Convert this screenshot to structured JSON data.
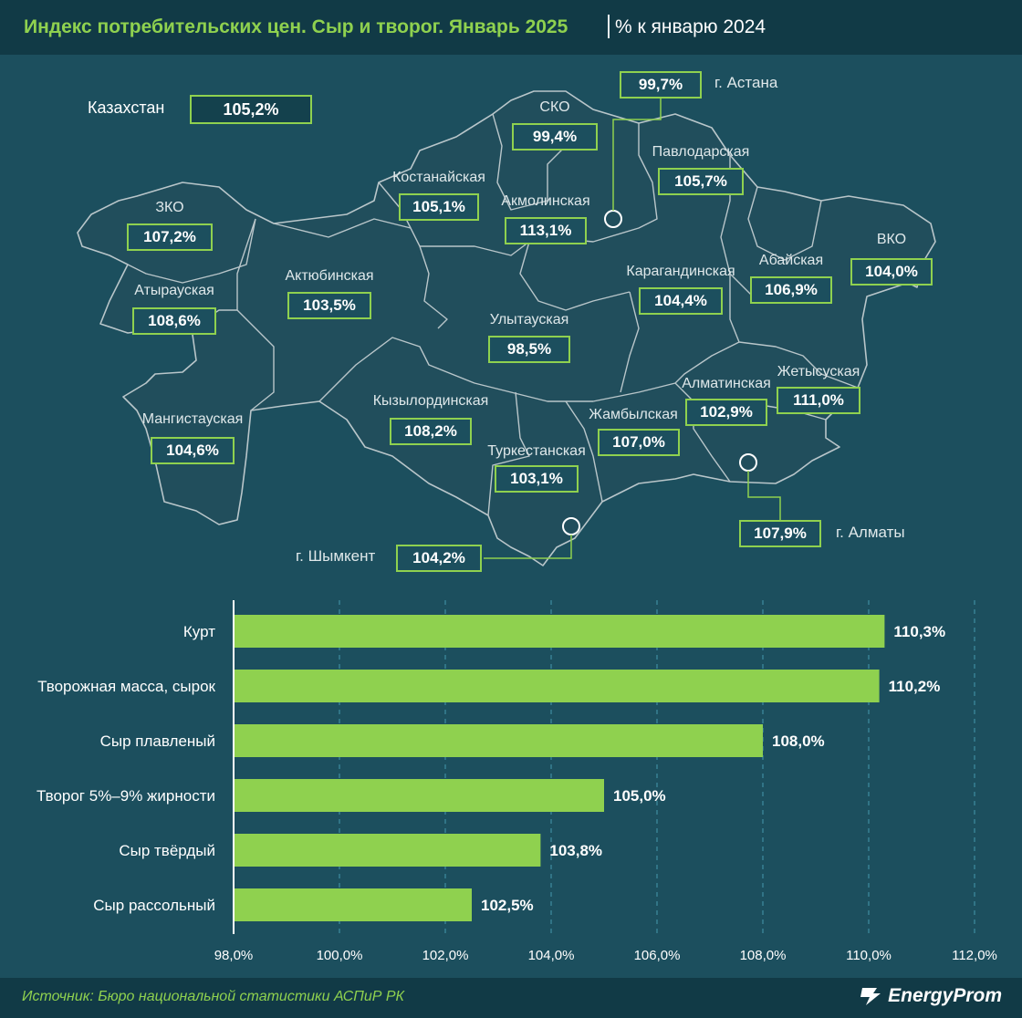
{
  "header": {
    "title": "Индекс потребительских цен. Сыр и творог. Январь 2025",
    "unit": "% к январю 2024"
  },
  "map": {
    "country": {
      "name": "Казахстан",
      "value": "105,2%"
    },
    "regions": [
      {
        "name": "СКО",
        "value": "99,4%"
      },
      {
        "name": "Павлодарская",
        "value": "105,7%"
      },
      {
        "name": "Костанайская",
        "value": "105,1%"
      },
      {
        "name": "Акмолинская",
        "value": "113,1%"
      },
      {
        "name": "ЗКО",
        "value": "107,2%"
      },
      {
        "name": "Актюбинская",
        "value": "103,5%"
      },
      {
        "name": "Атырауская",
        "value": "108,6%"
      },
      {
        "name": "Карагандинская",
        "value": "104,4%"
      },
      {
        "name": "Абайская",
        "value": "106,9%"
      },
      {
        "name": "ВКО",
        "value": "104,0%"
      },
      {
        "name": "Улытауская",
        "value": "98,5%"
      },
      {
        "name": "Мангистауская",
        "value": "104,6%"
      },
      {
        "name": "Кызылординская",
        "value": "108,2%"
      },
      {
        "name": "Жамбылская",
        "value": "107,0%"
      },
      {
        "name": "Алматинская",
        "value": "102,9%"
      },
      {
        "name": "Жетысуская",
        "value": "111,0%"
      },
      {
        "name": "Туркестанская",
        "value": "103,1%"
      }
    ],
    "cities": [
      {
        "name": "г. Астана",
        "value": "99,7%"
      },
      {
        "name": "г. Шымкент",
        "value": "104,2%"
      },
      {
        "name": "г. Алматы",
        "value": "107,9%"
      }
    ]
  },
  "chart_data": {
    "type": "bar",
    "orientation": "horizontal",
    "categories": [
      "Курт",
      "Творожная масса, сырок",
      "Сыр плавленый",
      "Творог 5%–9% жирности",
      "Сыр твёрдый",
      "Сыр рассольный"
    ],
    "values": [
      110.3,
      110.2,
      108.0,
      105.0,
      103.8,
      102.5
    ],
    "value_labels": [
      "110,3%",
      "110,2%",
      "108,0%",
      "105,0%",
      "103,8%",
      "102,5%"
    ],
    "xlim": [
      98,
      112
    ],
    "ticks": [
      "98,0%",
      "100,0%",
      "102,0%",
      "104,0%",
      "106,0%",
      "108,0%",
      "110,0%",
      "112,0%"
    ],
    "grid": true,
    "bar_color": "#8fd14f"
  },
  "footer": {
    "source": "Источник: Бюро национальной статистики АСПиР РК",
    "logo": "EnergyProm"
  },
  "colors": {
    "background": "#1c4f5e",
    "accent": "#8fd14f",
    "header": "#113a46"
  }
}
